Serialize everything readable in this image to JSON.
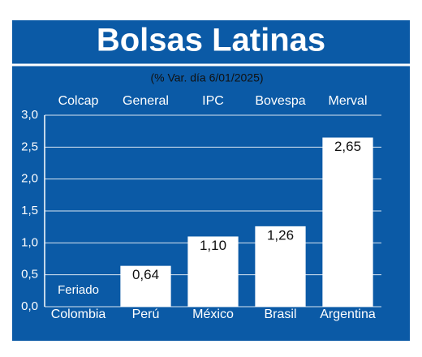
{
  "chart_data": {
    "type": "bar",
    "title": "Bolsas Latinas",
    "subtitle": "(% Var. día 6/01/2025)",
    "index_names": [
      "Colcap",
      "General",
      "IPC",
      "Bovespa",
      "Merval"
    ],
    "categories": [
      "Colombia",
      "Perú",
      "México",
      "Brasil",
      "Argentina"
    ],
    "values": [
      null,
      0.64,
      1.1,
      1.26,
      2.65
    ],
    "value_labels": [
      "Feriado",
      "0,64",
      "1,10",
      "1,26",
      "2,65"
    ],
    "color": "#ffffff",
    "ylim": [
      0,
      3
    ],
    "yticks": [
      {
        "value": 0,
        "label": "0,0"
      },
      {
        "value": 0.5,
        "label": "0,5"
      },
      {
        "value": 1,
        "label": "1,0"
      },
      {
        "value": 1.5,
        "label": "1,5"
      },
      {
        "value": 2,
        "label": "2,0"
      },
      {
        "value": 2.5,
        "label": "2,5"
      },
      {
        "value": 3,
        "label": "3,0"
      }
    ],
    "grid": true
  }
}
